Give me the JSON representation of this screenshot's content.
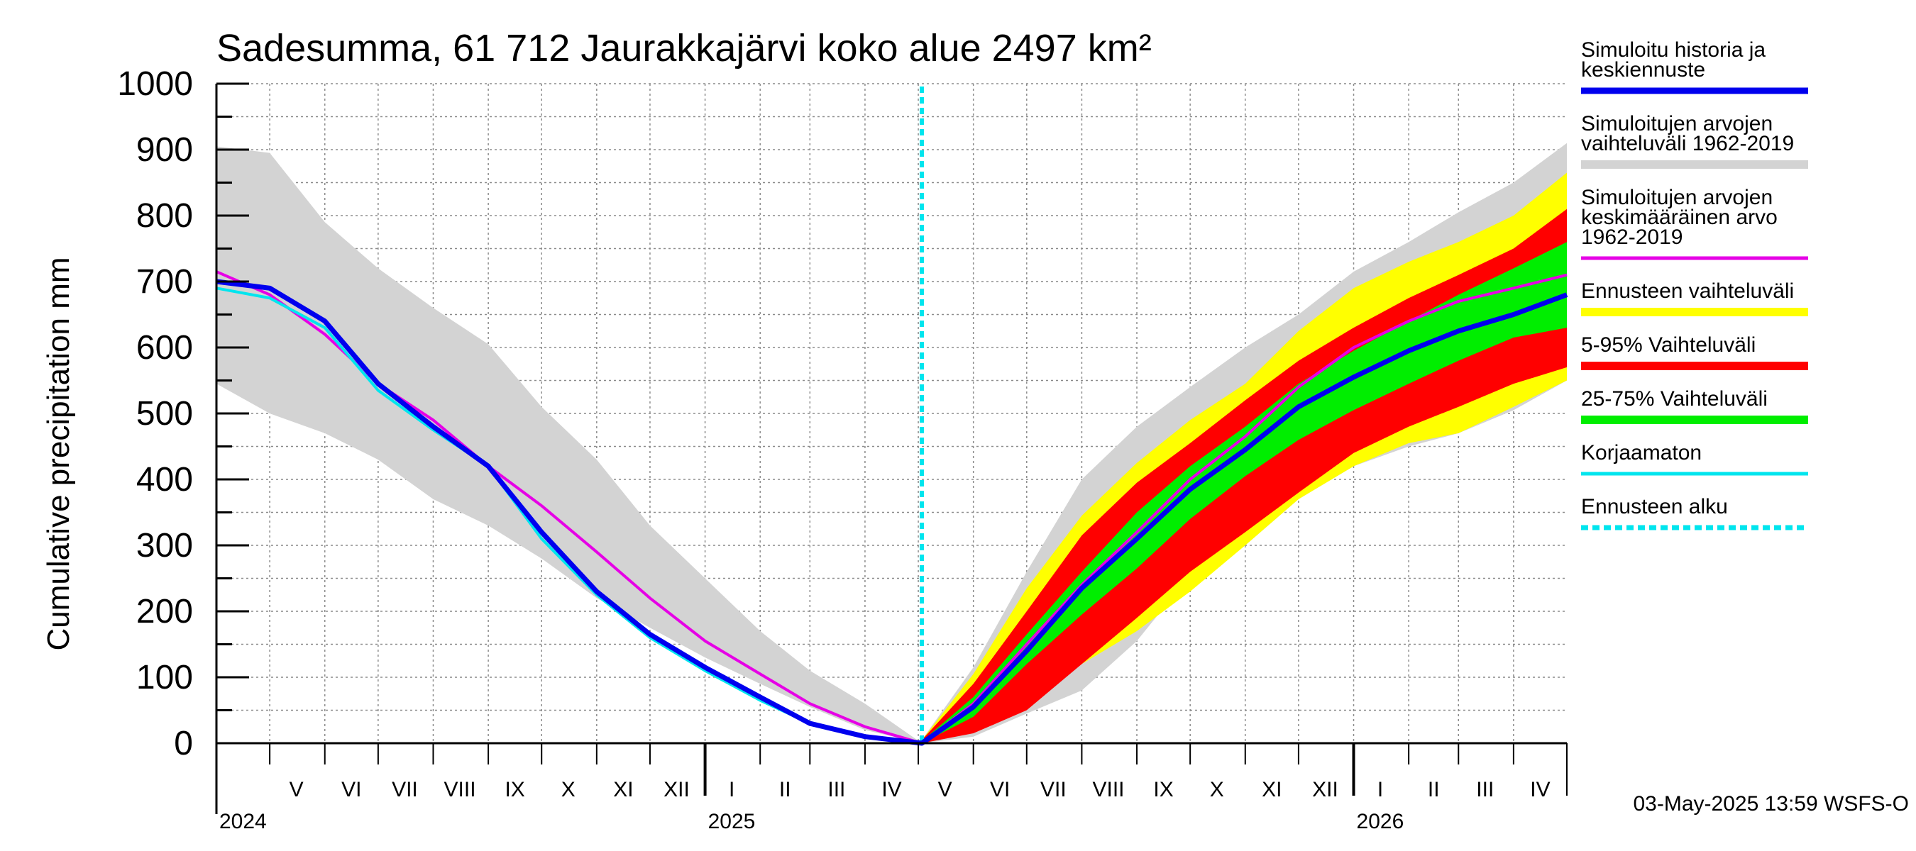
{
  "chart_data": {
    "type": "area",
    "title": "Sadesumma, 61 712 Jaurakkajärvi koko alue 2497 km²",
    "ylabel": "Cumulative precipitation   mm",
    "ylim": [
      0,
      1000
    ],
    "y_ticks": [
      "0",
      "100",
      "200",
      "300",
      "400",
      "500",
      "600",
      "700",
      "800",
      "900",
      "1000"
    ],
    "grid": true,
    "x_start": "2024-04-01",
    "x_end": "2026-05-01",
    "forecast_start": "2025-05-03",
    "month_labels": [
      {
        "label": "V",
        "date": "2024-05-16"
      },
      {
        "label": "VI",
        "date": "2024-06-16"
      },
      {
        "label": "VII",
        "date": "2024-07-16"
      },
      {
        "label": "VIII",
        "date": "2024-08-16"
      },
      {
        "label": "IX",
        "date": "2024-09-16"
      },
      {
        "label": "X",
        "date": "2024-10-16"
      },
      {
        "label": "XI",
        "date": "2024-11-16"
      },
      {
        "label": "XII",
        "date": "2024-12-16"
      },
      {
        "label": "I",
        "date": "2025-01-16"
      },
      {
        "label": "II",
        "date": "2025-02-15"
      },
      {
        "label": "III",
        "date": "2025-03-16"
      },
      {
        "label": "IV",
        "date": "2025-04-16"
      },
      {
        "label": "V",
        "date": "2025-05-16"
      },
      {
        "label": "VI",
        "date": "2025-06-16"
      },
      {
        "label": "VII",
        "date": "2025-07-16"
      },
      {
        "label": "VIII",
        "date": "2025-08-16"
      },
      {
        "label": "IX",
        "date": "2025-09-16"
      },
      {
        "label": "X",
        "date": "2025-10-16"
      },
      {
        "label": "XI",
        "date": "2025-11-16"
      },
      {
        "label": "XII",
        "date": "2025-12-16"
      },
      {
        "label": "I",
        "date": "2026-01-16"
      },
      {
        "label": "II",
        "date": "2026-02-15"
      },
      {
        "label": "III",
        "date": "2026-03-16"
      },
      {
        "label": "IV",
        "date": "2026-04-16"
      }
    ],
    "year_labels": [
      {
        "label": "2024",
        "date": "2024-04-01"
      },
      {
        "label": "2025",
        "date": "2025-01-01"
      },
      {
        "label": "2026",
        "date": "2026-01-01"
      }
    ],
    "bands": [
      {
        "name": "Simuloitujen arvojen vaihteluväli 1962-2019",
        "color": "#d3d3d3",
        "x": [
          "2024-04-01",
          "2024-05-01",
          "2024-06-01",
          "2024-07-01",
          "2024-08-01",
          "2024-09-01",
          "2024-10-01",
          "2024-11-01",
          "2024-12-01",
          "2025-01-01",
          "2025-02-01",
          "2025-03-01",
          "2025-04-01",
          "2025-05-03"
        ],
        "upper": [
          905,
          895,
          790,
          720,
          660,
          605,
          510,
          430,
          330,
          250,
          170,
          110,
          60,
          0
        ],
        "lower": [
          545,
          500,
          470,
          430,
          370,
          330,
          280,
          220,
          175,
          130,
          90,
          55,
          20,
          0
        ]
      },
      {
        "name": "Simuloitujen arvojen vaihteluväli 1962-2019",
        "color": "#d3d3d3",
        "x": [
          "2025-05-03",
          "2025-06-01",
          "2025-07-01",
          "2025-08-01",
          "2025-09-01",
          "2025-10-01",
          "2025-11-01",
          "2025-12-01",
          "2026-01-01",
          "2026-02-01",
          "2026-03-01",
          "2026-04-01",
          "2026-05-01"
        ],
        "upper": [
          5,
          115,
          260,
          400,
          480,
          540,
          600,
          650,
          715,
          760,
          805,
          850,
          910
        ],
        "lower": [
          0,
          10,
          45,
          80,
          155,
          255,
          300,
          370,
          420,
          450,
          470,
          505,
          550
        ]
      },
      {
        "name": "Ennusteen vaihteluväli",
        "color": "#ffff00",
        "x": [
          "2025-05-03",
          "2025-06-01",
          "2025-07-01",
          "2025-08-01",
          "2025-09-01",
          "2025-10-01",
          "2025-11-01",
          "2025-12-01",
          "2026-01-01",
          "2026-02-01",
          "2026-03-01",
          "2026-04-01",
          "2026-05-01"
        ],
        "upper": [
          5,
          105,
          235,
          345,
          425,
          490,
          545,
          625,
          690,
          730,
          760,
          800,
          865
        ],
        "lower": [
          0,
          20,
          70,
          120,
          170,
          230,
          300,
          370,
          420,
          455,
          470,
          510,
          550
        ]
      },
      {
        "name": "5-95% Vaihteluväli",
        "color": "#ff0000",
        "x": [
          "2025-05-03",
          "2025-06-01",
          "2025-07-01",
          "2025-08-01",
          "2025-09-01",
          "2025-10-01",
          "2025-11-01",
          "2025-12-01",
          "2026-01-01",
          "2026-02-01",
          "2026-03-01",
          "2026-04-01",
          "2026-05-01"
        ],
        "upper": [
          5,
          90,
          200,
          315,
          395,
          455,
          520,
          580,
          630,
          675,
          710,
          750,
          810
        ],
        "lower": [
          0,
          15,
          50,
          120,
          190,
          260,
          320,
          380,
          440,
          480,
          510,
          545,
          570
        ]
      },
      {
        "name": "25-75% Vaihteluväli",
        "color": "#00ee00",
        "x": [
          "2025-05-03",
          "2025-06-01",
          "2025-07-01",
          "2025-08-01",
          "2025-09-01",
          "2025-10-01",
          "2025-11-01",
          "2025-12-01",
          "2026-01-01",
          "2026-02-01",
          "2026-03-01",
          "2026-04-01",
          "2026-05-01"
        ],
        "upper": [
          3,
          70,
          165,
          260,
          350,
          420,
          480,
          545,
          595,
          640,
          680,
          720,
          760
        ],
        "lower": [
          0,
          40,
          120,
          195,
          265,
          340,
          405,
          460,
          505,
          545,
          580,
          615,
          630
        ]
      }
    ],
    "series": [
      {
        "name": "Simuloitujen arvojen keskimääräinen arvo 1962-2019",
        "color": "#e600e6",
        "width": 4,
        "x": [
          "2024-04-01",
          "2024-05-01",
          "2024-06-01",
          "2024-07-01",
          "2024-08-01",
          "2024-09-01",
          "2024-10-01",
          "2024-11-01",
          "2024-12-01",
          "2025-01-01",
          "2025-02-01",
          "2025-03-01",
          "2025-04-01",
          "2025-05-03",
          "2025-06-01",
          "2025-07-01",
          "2025-08-01",
          "2025-09-01",
          "2025-10-01",
          "2025-11-01",
          "2025-12-01",
          "2026-01-01",
          "2026-02-01",
          "2026-03-01",
          "2026-04-01",
          "2026-05-01"
        ],
        "y": [
          715,
          680,
          620,
          545,
          490,
          420,
          360,
          290,
          220,
          155,
          105,
          60,
          25,
          0,
          60,
          150,
          240,
          320,
          400,
          465,
          540,
          600,
          640,
          670,
          690,
          710
        ]
      },
      {
        "name": "Korjaamaton",
        "color": "#00e5ee",
        "width": 4,
        "x": [
          "2024-04-01",
          "2024-05-01",
          "2024-06-01",
          "2024-07-01",
          "2024-08-01",
          "2024-09-01",
          "2024-10-01",
          "2024-11-01",
          "2024-12-01",
          "2025-01-01",
          "2025-02-01",
          "2025-03-01",
          "2025-04-01",
          "2025-05-03"
        ],
        "y": [
          690,
          675,
          630,
          535,
          475,
          420,
          310,
          225,
          160,
          110,
          65,
          30,
          10,
          0
        ]
      },
      {
        "name": "Simuloitu historia ja keskiennuste",
        "color": "#0000ee",
        "width": 7,
        "x": [
          "2024-04-01",
          "2024-05-01",
          "2024-06-01",
          "2024-07-01",
          "2024-08-01",
          "2024-09-01",
          "2024-10-01",
          "2024-11-01",
          "2024-12-01",
          "2025-01-01",
          "2025-02-01",
          "2025-03-01",
          "2025-04-01",
          "2025-05-03",
          "2025-06-01",
          "2025-07-01",
          "2025-08-01",
          "2025-09-01",
          "2025-10-01",
          "2025-11-01",
          "2025-12-01",
          "2026-01-01",
          "2026-02-01",
          "2026-03-01",
          "2026-04-01",
          "2026-05-01"
        ],
        "y": [
          700,
          690,
          640,
          545,
          480,
          420,
          320,
          230,
          165,
          115,
          70,
          30,
          10,
          0,
          55,
          140,
          235,
          310,
          385,
          445,
          510,
          555,
          595,
          625,
          650,
          680
        ]
      }
    ],
    "legend_position": "right",
    "legend": [
      {
        "lines": [
          "Simuloitu historia ja",
          "keskiennuste"
        ],
        "color": "#0000ee",
        "style": "solid",
        "width": 9
      },
      {
        "lines": [
          "Simuloitujen arvojen",
          "vaihteluväli 1962-2019"
        ],
        "color": "#d3d3d3",
        "style": "solid",
        "width": 12
      },
      {
        "lines": [
          "Simuloitujen arvojen",
          "keskimääräinen arvo",
          "   1962-2019"
        ],
        "color": "#e600e6",
        "style": "solid",
        "width": 5
      },
      {
        "lines": [
          "Ennusteen vaihteluväli"
        ],
        "color": "#ffff00",
        "style": "solid",
        "width": 12
      },
      {
        "lines": [
          "5-95% Vaihteluväli"
        ],
        "color": "#ff0000",
        "style": "solid",
        "width": 12
      },
      {
        "lines": [
          "25-75% Vaihteluväli"
        ],
        "color": "#00ee00",
        "style": "solid",
        "width": 12
      },
      {
        "lines": [
          "Korjaamaton"
        ],
        "color": "#00e5ee",
        "style": "solid",
        "width": 5
      },
      {
        "lines": [
          "Ennusteen alku"
        ],
        "color": "#00e5ee",
        "style": "dotted",
        "width": 7
      }
    ],
    "footer": "03-May-2025 13:59 WSFS-O"
  }
}
